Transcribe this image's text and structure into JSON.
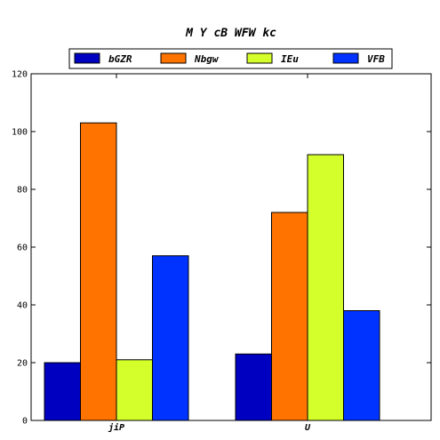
{
  "chart_data": {
    "type": "bar",
    "title": "M Y cB WFW kc",
    "xlabel": "",
    "ylabel": "",
    "categories": [
      "jiP",
      "U"
    ],
    "ylim": [
      0,
      120
    ],
    "yticks": [
      0,
      20,
      40,
      60,
      80,
      100,
      120
    ],
    "grid": false,
    "legend_position": "top",
    "series": [
      {
        "name": "bGZR",
        "color": "#0000c0",
        "values": [
          20,
          23
        ]
      },
      {
        "name": "Nbgw",
        "color": "#ff7300",
        "values": [
          103,
          72
        ]
      },
      {
        "name": "IEu",
        "color": "#d4ff2a",
        "values": [
          21,
          92
        ]
      },
      {
        "name": "VFB",
        "color": "#0033ff",
        "values": [
          57,
          38
        ]
      }
    ]
  }
}
